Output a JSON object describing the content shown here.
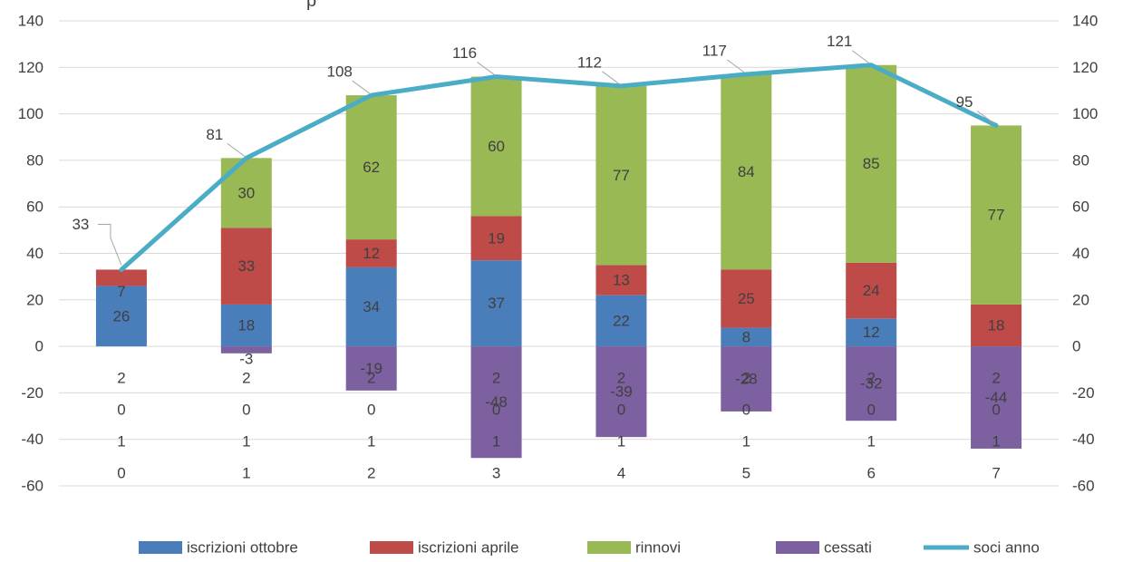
{
  "chart_data": {
    "type": "bar",
    "title_fragment": "p",
    "categories": [
      "0",
      "1",
      "2",
      "3",
      "4",
      "5",
      "6",
      "7"
    ],
    "category_year_lines": [
      "2",
      "0",
      "1"
    ],
    "stacked": true,
    "ylim": [
      -60,
      140
    ],
    "y_ticks": [
      "140",
      "120",
      "100",
      "80",
      "60",
      "40",
      "20",
      "0",
      "-20",
      "-40",
      "-60"
    ],
    "y2_ticks": [
      "140",
      "120",
      "100",
      "80",
      "60",
      "40",
      "20",
      "0",
      "-20",
      "-40",
      "-60"
    ],
    "grid": true,
    "legend_position": "bottom",
    "series": [
      {
        "name": "iscrizioni ottobre",
        "type": "bar",
        "color": "#4a7ebb",
        "values": [
          26,
          18,
          34,
          37,
          22,
          8,
          12,
          0
        ],
        "labels": [
          "26",
          "18",
          "34",
          "37",
          "22",
          "8",
          "12",
          ""
        ]
      },
      {
        "name": "iscrizioni aprile",
        "type": "bar",
        "color": "#be4b48",
        "values": [
          7,
          33,
          12,
          19,
          13,
          25,
          24,
          18
        ],
        "labels": [
          "7",
          "33",
          "12",
          "19",
          "13",
          "25",
          "24",
          "18"
        ]
      },
      {
        "name": "rinnovi",
        "type": "bar",
        "color": "#98b954",
        "values": [
          0,
          30,
          62,
          60,
          77,
          84,
          85,
          77
        ],
        "labels": [
          "",
          "30",
          "62",
          "60",
          "77",
          "84",
          "85",
          "77"
        ]
      },
      {
        "name": "cessati",
        "type": "bar",
        "color": "#7d60a0",
        "values": [
          0,
          -3,
          -19,
          -48,
          -39,
          -28,
          -32,
          -44
        ],
        "labels": [
          "",
          "-3",
          "-19",
          "-48",
          "-39",
          "-28",
          "-32",
          "-44"
        ]
      },
      {
        "name": "soci anno",
        "type": "line",
        "color": "#4bacc6",
        "values": [
          33,
          81,
          108,
          116,
          112,
          117,
          121,
          95
        ],
        "labels": [
          "33",
          "81",
          "108",
          "116",
          "112",
          "117",
          "121",
          "95"
        ]
      }
    ]
  }
}
